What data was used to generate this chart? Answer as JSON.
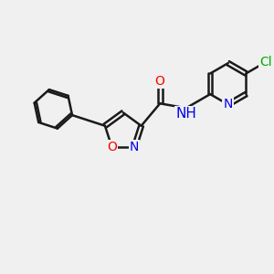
{
  "bg_color": "#f0f0f0",
  "bond_color": "#1a1a1a",
  "bond_width": 1.8,
  "atom_colors": {
    "O": "#ff0000",
    "N": "#0000ee",
    "Cl": "#00aa00",
    "C": "#1a1a1a"
  },
  "font_size": 10,
  "figsize": [
    3.0,
    3.0
  ],
  "dpi": 100
}
